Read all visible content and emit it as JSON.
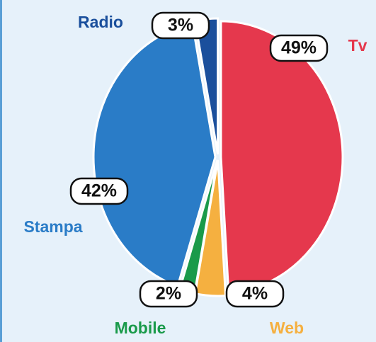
{
  "chart_data": {
    "type": "pie",
    "categories": [
      "Tv",
      "Web",
      "Mobile",
      "Stampa",
      "Radio"
    ],
    "values": [
      49,
      4,
      2,
      42,
      3
    ],
    "value_labels": [
      "49%",
      "4%",
      "2%",
      "42%",
      "3%"
    ],
    "colors": [
      "#e5384d",
      "#f5b040",
      "#1a9a4a",
      "#2a7cc7",
      "#1a4f9c"
    ]
  }
}
